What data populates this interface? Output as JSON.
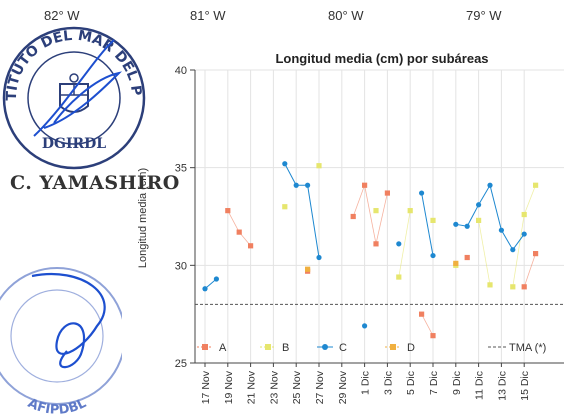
{
  "longitudes": [
    "82° W",
    "81° W",
    "80° W",
    "79° W"
  ],
  "stamp_top": {
    "text_arc": "INSTITUTO DEL MAR DEL PERU",
    "text_bottom": "DGIRDL",
    "color": "#1e3a8a"
  },
  "signer_name": "C. YAMASHIRO",
  "stamp_bottom": {
    "text_arc": "AFIPDBL",
    "color": "#3b5fc0"
  },
  "chart_data": {
    "type": "line",
    "title": "Longitud media (cm) por subáreas",
    "ylabel": "Longitud media (cm)",
    "xlabel": "",
    "ylim": [
      25,
      40
    ],
    "yticks": [
      25,
      30,
      35,
      40
    ],
    "grid": true,
    "legend_position": "bottom",
    "categories": [
      "17 Nov",
      "19 Nov",
      "21 Nov",
      "23 Nov",
      "25 Nov",
      "27 Nov",
      "29 Nov",
      "1 Dic",
      "3 Dic",
      "5 Dic",
      "7 Dic",
      "9 Dic",
      "11 Dic",
      "13 Dic",
      "15 Dic"
    ],
    "reference_line": {
      "name": "TMA (*)",
      "value": 28
    },
    "series": [
      {
        "name": "A",
        "color": "#f08060",
        "marker": "square",
        "points": [
          [
            1.0,
            32.8
          ],
          [
            1.5,
            31.7
          ],
          [
            2.0,
            31.0
          ],
          [
            4.5,
            29.7
          ],
          [
            6.5,
            32.5
          ],
          [
            7.0,
            34.1
          ],
          [
            7.5,
            31.1
          ],
          [
            8.0,
            33.7
          ],
          [
            9.5,
            27.5
          ],
          [
            10.0,
            26.4
          ],
          [
            11.5,
            30.4
          ],
          [
            14.0,
            28.9
          ],
          [
            14.5,
            30.6
          ]
        ]
      },
      {
        "name": "B",
        "color": "#e6e66e",
        "marker": "square",
        "points": [
          [
            3.5,
            33.0
          ],
          [
            5.0,
            35.1
          ],
          [
            7.5,
            32.8
          ],
          [
            8.5,
            29.4
          ],
          [
            9.0,
            32.8
          ],
          [
            10.0,
            32.3
          ],
          [
            11.0,
            30.0
          ],
          [
            12.0,
            32.3
          ],
          [
            12.5,
            29.0
          ],
          [
            13.5,
            28.9
          ],
          [
            14.0,
            32.6
          ],
          [
            14.5,
            34.1
          ]
        ]
      },
      {
        "name": "C",
        "color": "#1e88d0",
        "marker": "circle",
        "points": [
          [
            0.0,
            28.8
          ],
          [
            0.5,
            29.3
          ],
          [
            3.5,
            35.2
          ],
          [
            4.0,
            34.1
          ],
          [
            4.5,
            34.1
          ],
          [
            5.0,
            30.4
          ],
          [
            7.0,
            26.9
          ],
          [
            8.5,
            31.1
          ],
          [
            9.5,
            33.7
          ],
          [
            10.0,
            30.5
          ],
          [
            11.0,
            32.1
          ],
          [
            11.5,
            32.0
          ],
          [
            12.0,
            33.1
          ],
          [
            12.5,
            34.1
          ],
          [
            13.0,
            31.8
          ],
          [
            13.5,
            30.8
          ],
          [
            14.0,
            31.6
          ]
        ]
      },
      {
        "name": "D",
        "color": "#f0b040",
        "marker": "square",
        "points": [
          [
            4.5,
            29.8
          ],
          [
            11.0,
            30.1
          ]
        ]
      }
    ]
  }
}
